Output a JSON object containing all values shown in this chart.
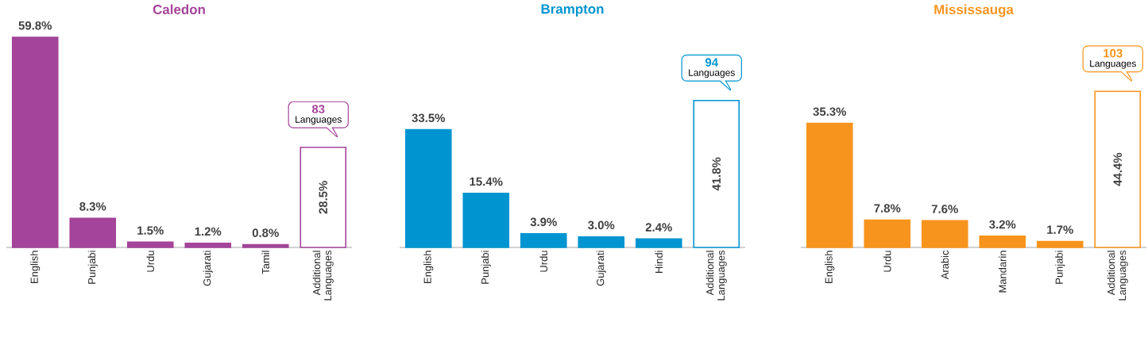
{
  "chart_data": [
    {
      "type": "bar",
      "title": "Caledon",
      "categories": [
        "English",
        "Punjabi",
        "Urdu",
        "Gujarati",
        "Tamil",
        "Additional Languages"
      ],
      "values": [
        59.8,
        8.3,
        1.5,
        1.2,
        0.8,
        28.5
      ],
      "color": "#a4449a",
      "colors": [
        "#a4449a",
        "#a4449a",
        "#a4449a",
        "#a4449a",
        "#a4449a",
        "#ffffff"
      ],
      "value_labels": [
        "59.8%",
        "8.3%",
        "1.5%",
        "1.2%",
        "0.8%",
        "28.5%"
      ],
      "annotations": [
        "83",
        "Languages"
      ]
    },
    {
      "type": "bar",
      "title": "Brampton",
      "categories": [
        "English",
        "Punjabi",
        "Urdu",
        "Gujarati",
        "Hindi",
        "Additional Languages"
      ],
      "values": [
        33.5,
        15.4,
        3.9,
        3.0,
        2.4,
        41.8
      ],
      "color": "#0095d0",
      "colors": [
        "#0095d0",
        "#0095d0",
        "#0095d0",
        "#0095d0",
        "#0095d0",
        "#ffffff"
      ],
      "value_labels": [
        "33.5%",
        "15.4%",
        "3.9%",
        "3.0%",
        "2.4%",
        "41.8%"
      ],
      "annotations": [
        "94",
        "Languages"
      ]
    },
    {
      "type": "bar",
      "title": "Mississauga",
      "categories": [
        "English",
        "Urdu",
        "Arabic",
        "Mandarin",
        "Punjabi",
        "Additional Languages"
      ],
      "values": [
        35.3,
        7.8,
        7.6,
        3.2,
        1.7,
        44.4
      ],
      "color": "#f7941d",
      "colors": [
        "#f7941d",
        "#f7941d",
        "#f7941d",
        "#f7941d",
        "#f7941d",
        "#ffffff"
      ],
      "value_labels": [
        "35.3%",
        "7.8%",
        "7.6%",
        "3.2%",
        "1.7%",
        "44.4%"
      ],
      "annotations": [
        "103",
        "Languages"
      ]
    }
  ]
}
